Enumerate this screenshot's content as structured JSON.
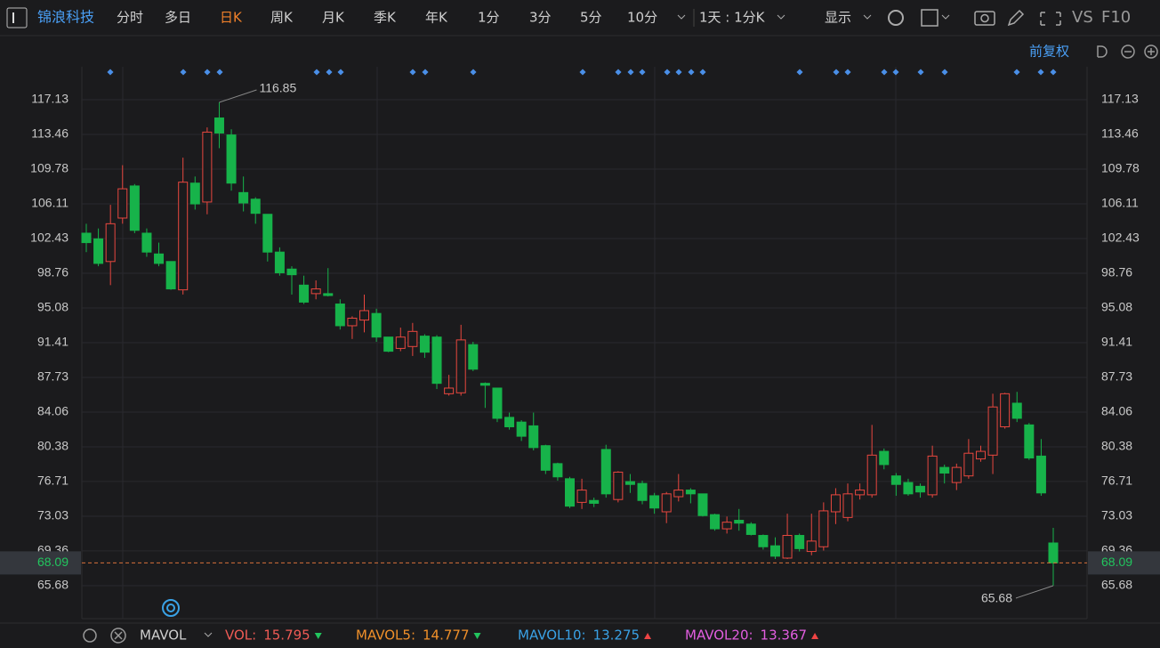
{
  "header": {
    "stock": "锦浪科技",
    "tabs": [
      "分时",
      "多日",
      "日K",
      "周K",
      "月K",
      "季K",
      "年K",
      "1分",
      "3分",
      "5分",
      "10分"
    ],
    "active_tab": 2,
    "multi": "1天 : 1分K",
    "display": "显示",
    "vs": "VS",
    "f10": "F10",
    "adjust": "前复权"
  },
  "chart_data": {
    "type": "candlestick",
    "open": [
      103.0,
      102.4,
      100.0,
      104.6,
      108.0,
      103.0,
      100.8,
      100.0,
      97.0,
      108.3,
      106.3,
      115.2,
      113.4,
      107.3,
      106.6,
      105.0,
      101.0,
      99.2,
      97.5,
      96.6,
      96.6,
      95.5,
      93.2,
      93.8,
      94.5,
      92.0,
      90.8,
      91.0,
      92.1,
      92.0,
      86.0,
      86.1,
      91.2,
      87.1,
      86.6,
      83.5,
      83.0,
      82.6,
      80.5,
      78.6,
      77.0,
      74.5,
      74.7,
      80.1,
      74.8,
      76.7,
      76.5,
      75.2,
      73.5,
      75.1,
      75.8,
      75.4,
      73.2,
      71.7,
      72.6,
      72.2,
      71.0,
      69.9,
      68.6,
      71.0,
      69.3,
      69.8,
      73.5,
      72.9,
      75.3,
      75.3,
      79.9,
      77.3,
      76.6,
      76.2,
      75.3,
      78.2,
      76.6,
      77.3,
      79.1,
      79.5,
      82.5,
      85.0,
      82.7,
      79.4,
      70.2
    ],
    "high": [
      104.0,
      103.5,
      106.0,
      110.2,
      108.2,
      103.5,
      102.0,
      100.0,
      111.0,
      109.0,
      114.2,
      116.85,
      114.0,
      109.0,
      106.8,
      105.0,
      101.5,
      99.5,
      98.5,
      98.0,
      99.3,
      96.0,
      94.2,
      96.5,
      95.0,
      92.0,
      93.0,
      93.5,
      92.3,
      92.2,
      88.0,
      93.3,
      91.5,
      87.2,
      86.6,
      84.0,
      83.2,
      84.0,
      80.6,
      78.7,
      77.2,
      77.0,
      75.0,
      80.6,
      77.8,
      77.5,
      76.8,
      75.5,
      75.6,
      77.5,
      76.0,
      75.4,
      73.3,
      73.0,
      73.8,
      72.4,
      71.1,
      70.8,
      73.3,
      71.2,
      73.3,
      74.5,
      76.0,
      76.5,
      76.5,
      82.7,
      80.2,
      77.6,
      77.0,
      76.5,
      80.5,
      78.5,
      78.6,
      81.2,
      80.5,
      86.0,
      86.1,
      86.2,
      82.9,
      81.2,
      71.8
    ],
    "low": [
      101.0,
      99.5,
      97.5,
      104.0,
      103.0,
      100.5,
      99.5,
      97.0,
      96.5,
      105.5,
      105.0,
      112.0,
      107.5,
      105.3,
      104.0,
      100.0,
      98.5,
      96.5,
      95.5,
      96.0,
      96.3,
      92.8,
      91.8,
      92.5,
      91.5,
      90.4,
      90.5,
      90.0,
      89.8,
      86.5,
      85.8,
      85.8,
      88.4,
      84.5,
      83.0,
      82.2,
      81.0,
      80.0,
      77.5,
      76.8,
      73.9,
      73.8,
      74.0,
      75.0,
      74.5,
      75.5,
      74.3,
      73.3,
      72.3,
      74.6,
      74.4,
      73.0,
      71.5,
      71.2,
      71.5,
      71.0,
      69.5,
      68.5,
      68.5,
      69.3,
      68.9,
      69.4,
      72.2,
      72.5,
      74.8,
      75.0,
      78.0,
      75.2,
      75.2,
      75.0,
      75.0,
      76.5,
      75.8,
      77.0,
      78.8,
      77.5,
      82.3,
      83.0,
      79.0,
      75.2,
      65.68
    ],
    "close": [
      102.0,
      99.8,
      104.0,
      107.7,
      103.3,
      101.0,
      99.8,
      97.1,
      108.4,
      106.1,
      113.7,
      113.6,
      108.3,
      106.2,
      105.1,
      101.0,
      98.8,
      98.6,
      95.7,
      97.1,
      96.4,
      93.2,
      94.0,
      94.8,
      92.0,
      90.5,
      92.0,
      92.6,
      90.4,
      87.1,
      86.6,
      91.7,
      88.6,
      86.9,
      83.4,
      82.5,
      81.5,
      80.3,
      77.9,
      77.2,
      74.1,
      75.8,
      74.4,
      75.4,
      77.7,
      76.4,
      74.7,
      73.9,
      75.4,
      75.8,
      75.4,
      73.1,
      71.7,
      72.4,
      72.3,
      71.1,
      69.8,
      68.8,
      71.0,
      69.6,
      70.4,
      73.6,
      75.3,
      75.4,
      75.8,
      79.5,
      78.5,
      76.4,
      75.4,
      75.6,
      79.4,
      77.6,
      78.2,
      79.7,
      79.9,
      84.6,
      86.0,
      83.4,
      79.2,
      75.5,
      68.09
    ],
    "up_color": "#e8473f",
    "down_color": "#17b34a",
    "ylim": [
      62.19,
      120.62
    ],
    "yticks": [
      65.68,
      69.36,
      73.03,
      76.71,
      80.38,
      84.06,
      87.73,
      91.41,
      95.08,
      98.76,
      102.43,
      106.11,
      109.78,
      113.46,
      117.13
    ],
    "grid": true
  },
  "indicators": {
    "name": "MAVOL",
    "items": [
      {
        "label": "VOL:",
        "value": 15.795,
        "color": "#ef5b55",
        "trend": "down"
      },
      {
        "label": "MAVOL5:",
        "value": 14.777,
        "color": "#f0902a",
        "trend": "down"
      },
      {
        "label": "MAVOL10:",
        "value": 13.275,
        "color": "#3aa2e6",
        "trend": "up"
      },
      {
        "label": "MAVOL20:",
        "value": 13.367,
        "color": "#e25ee0",
        "trend": "up"
      }
    ]
  }
}
